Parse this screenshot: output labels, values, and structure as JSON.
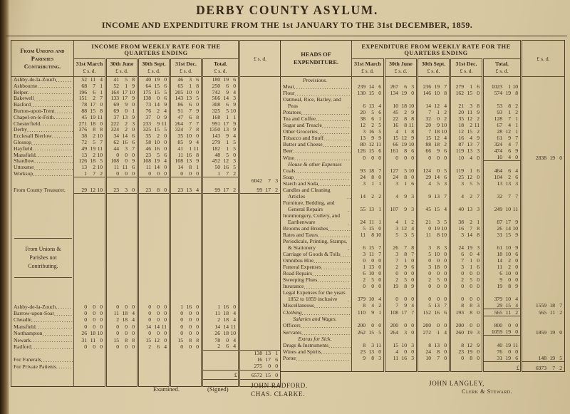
{
  "page": {
    "title": "DERBY COUNTY ASYLUM.",
    "subtitle": "INCOME AND EXPENDITURE FROM THE 1st JANUARY TO THE 31st DECEMBER, 1859."
  },
  "pound_sign": "£",
  "colors": {
    "paper": "#d8c8a2",
    "ink": "#35291a",
    "rule": "#5d4a33"
  },
  "income": {
    "row_header": "From Unions and Parishes Contributing.",
    "row_header_2": "From Unions & Parishes not Contributing.",
    "table_header": "INCOME FROM WEEKLY RATE FOR THE QUARTERS ENDING",
    "quarters": [
      "31st March",
      "30th June",
      "30th Sept.",
      "31st Dec.",
      "Total."
    ],
    "currency": "£ s. d.",
    "contributing_rows": [
      {
        "name": "Ashby-de-la-Zouch",
        "q": [
          "52 11 4",
          "41 5 8",
          "40 19 0",
          "46 3 6"
        ],
        "total": "180 19 6"
      },
      {
        "name": "Ashbourne",
        "q": [
          "68 7 1",
          "52 1 9",
          "64 15 6",
          "65 1 8"
        ],
        "total": "250 6 0"
      },
      {
        "name": "Belper",
        "q": [
          "196 6 1",
          "164 17 10",
          "175 15 5",
          "205 10 0"
        ],
        "total": "742 9 4"
      },
      {
        "name": "Bakewell",
        "q": [
          "151 2 7",
          "133 17 9",
          "138 0 6",
          "143 13 5"
        ],
        "total": "566 14 3"
      },
      {
        "name": "Basford",
        "q": [
          "78 17 0",
          "69 9 0",
          "73 14 9",
          "86 6 0"
        ],
        "total": "308 6 9"
      },
      {
        "name": "Burton-upon-Trent",
        "q": [
          "88 15 8",
          "69 0 1",
          "76 2 4",
          "91 7 9"
        ],
        "total": "325 5 10"
      },
      {
        "name": "Chapel-en-le-Frith",
        "q": [
          "45 19 11",
          "37 13 9",
          "37 0 9",
          "47 6 8"
        ],
        "total": "168 1 1"
      },
      {
        "name": "Chesterfield",
        "q": [
          "271 18 0",
          "222 2 3",
          "233 9 11",
          "264 7 7"
        ],
        "total": "991 17 9"
      },
      {
        "name": "Derby",
        "q": [
          "376 8 8",
          "324 2 0",
          "325 15 5",
          "324 7 8"
        ],
        "total": "1350 13 9"
      },
      {
        "name": "Ecclesall Bierlow",
        "q": [
          "38 2 10",
          "34 14 6",
          "35 2 0",
          "35 10 0"
        ],
        "total": "143 9 4"
      },
      {
        "name": "Glossop",
        "q": [
          "72 5 7",
          "62 16 6",
          "58 10 0",
          "85 9 4"
        ],
        "total": "279 1 5"
      },
      {
        "name": "Hayfield",
        "q": [
          "49 19 11",
          "44 3 7",
          "46 16 0",
          "41 1 11"
        ],
        "total": "182 1 5"
      },
      {
        "name": "Mansfield",
        "q": [
          "13 2 10",
          "0 0 0",
          "23 5 6",
          "11 16 8"
        ],
        "total": "48 5 0"
      },
      {
        "name": "Shardlow",
        "q": [
          "126 18 5",
          "108 0 9",
          "108 19 4",
          "108 13 9"
        ],
        "total": "452 12 3"
      },
      {
        "name": "Uttoxeter",
        "q": [
          "13 2 10",
          "11 11 6",
          "11 14 0",
          "14 8 1"
        ],
        "total": "50 16 5"
      },
      {
        "name": "Worksop",
        "q": [
          "1 7 2",
          "0 0 0",
          "0 0 0",
          "0 0 0"
        ],
        "total": "1 7 2"
      }
    ],
    "contributing_total": "6042 7 3",
    "county_treasurer": {
      "name": "From County Treasurer.",
      "q": [
        "29 12 10",
        "23 3 0",
        "23 8 0",
        "23 13 4"
      ],
      "total": "99 17 2",
      "summary": "99 17 2"
    },
    "not_contributing_rows": [
      {
        "name": "Ashby-de-la-Zouch",
        "q": [
          "0 0 0",
          "0 0 0",
          "0 0 0",
          "1 16 0"
        ],
        "total": "1 16 0"
      },
      {
        "name": "Barrow-upon-Soar",
        "q": [
          "0 0 0",
          "11 18 4",
          "0 0 0",
          "0 0 0"
        ],
        "total": "11 18 4"
      },
      {
        "name": "Cheadle",
        "q": [
          "0 0 0",
          "2 18 4",
          "0 0 0",
          "0 0 0"
        ],
        "total": "2 18 4"
      },
      {
        "name": "Mansfield",
        "q": [
          "0 0 0",
          "0 0 0",
          "14 14 11",
          "0 0 0"
        ],
        "total": "14 14 11"
      },
      {
        "name": "Northampton",
        "q": [
          "26 18 10",
          "0 0 0",
          "0 0 0",
          "0 0 0"
        ],
        "total": "26 18 10"
      },
      {
        "name": "Newark",
        "q": [
          "31 11 0",
          "15 8 8",
          "15 12 0",
          "15 8 8"
        ],
        "total": "78 0 4"
      },
      {
        "name": "Radford",
        "q": [
          "0 0 0",
          "0 0 0",
          "2 6 4",
          "0 0 0"
        ],
        "total": "2 6 4"
      }
    ],
    "not_contributing_total": "138 13 1",
    "funerals": {
      "name": "For Funerals",
      "summary": "16 17 6"
    },
    "private_patients": {
      "name": "For Private Patients",
      "summary": "275 0 0"
    },
    "grand_total": "6572 15 0"
  },
  "expenditure": {
    "row_header": "HEADS OF EXPENDITURE.",
    "table_header": "EXPENDITURE FROM WEEKLY RATE FOR THE QUARTERS ENDING",
    "quarters": [
      "31st March",
      "30th June",
      "30th Sept.",
      "31st Dec.",
      "Total."
    ],
    "currency": "£ s. d.",
    "sections": [
      {
        "heading": "Provisions.",
        "section_total": "2838 19 0",
        "rows": [
          {
            "label": "Meat",
            "q": [
              "239 14 6",
              "267 6 3",
              "236 19 7",
              "279 1 6"
            ],
            "total": "1023 1 10"
          },
          {
            "label": "Flour",
            "q": [
              "130 15 0",
              "134 19 0",
              "146 10 8",
              "162 15 0"
            ],
            "total": "574 19 8"
          },
          {
            "label": "Oatmeal, Rice, Barley, and Peas",
            "q": [
              "6 13 4",
              "10 18 10",
              "14 12 4",
              "21 3 8"
            ],
            "total": "53 8 2"
          },
          {
            "label": "Potatoes",
            "q": [
              "20 5 6",
              "45 2 9",
              "7 1 2",
              "20 11 9"
            ],
            "total": "93 1 2"
          },
          {
            "label": "Tea and Coffee",
            "q": [
              "38 6 1",
              "22 8 8",
              "32 0 2",
              "35 12 2"
            ],
            "total": "128 7 1"
          },
          {
            "label": "Sugar and Treacle",
            "q": [
              "12 2 5",
              "16 8 11",
              "20 9 10",
              "18 2 11"
            ],
            "total": "67 4 1"
          },
          {
            "label": "Other Groceries",
            "q": [
              "3 16 5",
              "4 1 8",
              "7 18 10",
              "12 15 2"
            ],
            "total": "28 12 1"
          },
          {
            "label": "Tobacco and Snuff",
            "q": [
              "13 9 9",
              "15 12 9",
              "15 12 4",
              "16 4 9"
            ],
            "total": "61 9 7"
          },
          {
            "label": "Butter and Cheese",
            "q": [
              "80 12 11",
              "66 19 10",
              "88 18 2",
              "87 13 7"
            ],
            "total": "324 4 7"
          },
          {
            "label": "Beer",
            "q": [
              "126 15 6",
              "161 8 6",
              "66 9 6",
              "119 13 3"
            ],
            "total": "474 6 9"
          },
          {
            "label": "Wine",
            "q": [
              "0 0 0",
              "0 0 0",
              "0 0 0",
              "10 4 0"
            ],
            "total": "10 4 0"
          }
        ]
      },
      {
        "heading": "House & other Expenses",
        "section_total": "1559 18 7",
        "rows": [
          {
            "label": "Coals",
            "q": [
              "93 18 7",
              "127 5 10",
              "124 0 5",
              "119 1 6"
            ],
            "total": "464 6 4"
          },
          {
            "label": "Soap",
            "q": [
              "24 8 0",
              "24 8 0",
              "29 14 6",
              "25 12 0"
            ],
            "total": "104 2 6"
          },
          {
            "label": "Starch and Soda",
            "q": [
              "3 1 1",
              "3 1 6",
              "4 5 3",
              "3 5 5"
            ],
            "total": "13 13 3"
          },
          {
            "label": "Candles and Cleaning Articles",
            "q": [
              "14 2 2",
              "4 9 3",
              "9 13 7",
              "4 2 7"
            ],
            "total": "32 7 7"
          },
          {
            "label": "Furniture, Bedding, and General Repairs",
            "q": [
              "55 13 1",
              "107 9 3",
              "45 15 4",
              "40 13 3"
            ],
            "total": "249 10 11"
          },
          {
            "label": "Ironmongery, Cutlery, and Earthenware",
            "q": [
              "24 11 1",
              "4 1 2",
              "21 3 5",
              "38 2 1"
            ],
            "total": "87 17 9"
          },
          {
            "label": "Brooms and Brushes",
            "q": [
              "5 15 0",
              "3 12 4",
              "0 19 10",
              "16 7 8"
            ],
            "total": "26 14 10"
          },
          {
            "label": "Rates and Taxes",
            "q": [
              "11 8 10",
              "5 3 5",
              "11 8 10",
              "3 14 8"
            ],
            "total": "31 15 9"
          },
          {
            "label": "Periodicals, Printing, Stamps, & Stationery",
            "q": [
              "6 15 7",
              "26 7 8",
              "3 8 3",
              "24 19 3"
            ],
            "total": "61 10 9"
          },
          {
            "label": "Carriage of Goods & Tolls",
            "q": [
              "3 11 7",
              "3 8 7",
              "5 10 0",
              "6 0 4"
            ],
            "total": "18 10 6"
          },
          {
            "label": "Omnibus Hire",
            "q": [
              "0 0 0",
              "7 1 0",
              "0 0 0",
              "7 1 0"
            ],
            "total": "14 2 0"
          },
          {
            "label": "Funeral Expenses",
            "q": [
              "1 13 0",
              "2 9 6",
              "3 18 0",
              "3 1 6"
            ],
            "total": "11 2 0"
          },
          {
            "label": "Road Repairs",
            "q": [
              "6 10 0",
              "0 0 0",
              "0 0 0",
              "0 0 0"
            ],
            "total": "6 10 0"
          },
          {
            "label": "Sweeping Flues",
            "q": [
              "2 5 0",
              "2 5 0",
              "2 5 0",
              "2 5 0"
            ],
            "total": "9 0 0"
          },
          {
            "label": "Insurance",
            "q": [
              "0 0 0",
              "19 8 9",
              "0 0 0",
              "0 0 0"
            ],
            "total": "19 8 9"
          },
          {
            "label": "Legal Expenses for the years 1852 to 1859 inclusive",
            "q": [
              "379 10 4",
              "0 0 0",
              "0 0 0",
              "0 0 0"
            ],
            "total": "379 10 4"
          },
          {
            "label": "Miscellaneous",
            "q": [
              "8 4 2",
              "7 9 4",
              "5 13 7",
              "8 8 3"
            ],
            "total": "29 15 4"
          }
        ]
      },
      {
        "heading": "",
        "section_total": "565 11 2",
        "rows": [
          {
            "label": "Clothing",
            "italic": true,
            "q": [
              "110 9 1",
              "108 17 7",
              "152 16 6",
              "193 8 0"
            ],
            "total": "565 11 2"
          }
        ]
      },
      {
        "heading": "Salaries and Wages.",
        "section_total": "1859 19 0",
        "rows": [
          {
            "label": "Officers",
            "q": [
              "200 0 0",
              "200 0 0",
              "200 0 0",
              "200 0 0"
            ],
            "total": "800 0 0"
          },
          {
            "label": "Servants",
            "q": [
              "262 15 5",
              "264 3 0",
              "272 1 4",
              "260 19 3"
            ],
            "total": "1059 19 0"
          }
        ]
      },
      {
        "heading": "Extras for Sick.",
        "section_total": "148 19 5",
        "rows": [
          {
            "label": "Drugs & Instruments",
            "q": [
              "8 3 11",
              "15 10 3",
              "8 13 0",
              "8 12 9"
            ],
            "total": "40 19 11"
          },
          {
            "label": "Wines and Spirits",
            "q": [
              "23 13 0",
              "4 0 0",
              "24 8 0",
              "23 19 0"
            ],
            "total": "76 0 0"
          },
          {
            "label": "Porter",
            "q": [
              "9 8 3",
              "11 16 3",
              "10 7 0",
              "0 8 0"
            ],
            "total": "31 19 6"
          }
        ]
      }
    ],
    "grand_total": "6973 7 2"
  },
  "footer": {
    "examined": "Examined.",
    "signed": "(Signed)",
    "auditor_1": "JOHN RADFORD.",
    "auditor_2": "CHAS. CLARKE.",
    "clerk_name": "JOHN LANGLEY,",
    "clerk_title": "Clerk & Steward."
  }
}
